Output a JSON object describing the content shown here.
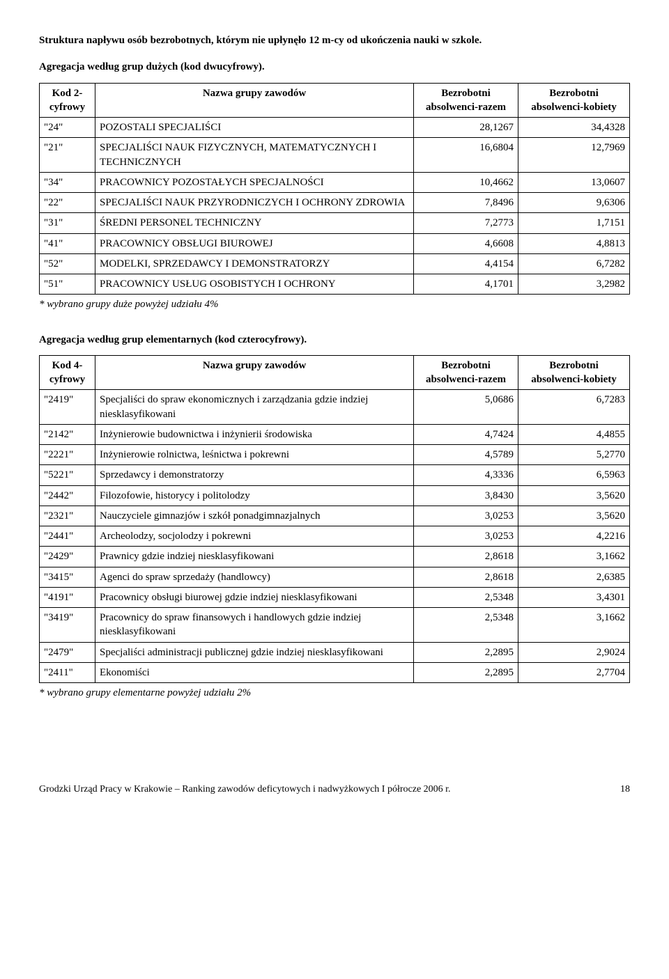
{
  "title": "Struktura napływu osób bezrobotnych, którym nie upłynęło 12 m-cy od ukończenia nauki w szkole.",
  "section1": {
    "heading": "Agregacja według grup dużych (kod dwucyfrowy).",
    "headers": {
      "code": "Kod 2-cyfrowy",
      "name": "Nazwa grupy zawodów",
      "razem": "Bezrobotni absolwenci-razem",
      "kobiety": "Bezrobotni absolwenci-kobiety"
    },
    "rows": [
      {
        "code": "\"24\"",
        "name": "POZOSTALI SPECJALIŚCI",
        "razem": "28,1267",
        "kobiety": "34,4328"
      },
      {
        "code": "\"21\"",
        "name": "SPECJALIŚCI NAUK FIZYCZNYCH, MATEMATYCZNYCH I TECHNICZNYCH",
        "razem": "16,6804",
        "kobiety": "12,7969"
      },
      {
        "code": "\"34\"",
        "name": "PRACOWNICY POZOSTAŁYCH SPECJALNOŚCI",
        "razem": "10,4662",
        "kobiety": "13,0607"
      },
      {
        "code": "\"22\"",
        "name": "SPECJALIŚCI NAUK PRZYRODNICZYCH I OCHRONY ZDROWIA",
        "razem": "7,8496",
        "kobiety": "9,6306"
      },
      {
        "code": "\"31\"",
        "name": "ŚREDNI PERSONEL TECHNICZNY",
        "razem": "7,2773",
        "kobiety": "1,7151"
      },
      {
        "code": "\"41\"",
        "name": "PRACOWNICY OBSŁUGI BIUROWEJ",
        "razem": "4,6608",
        "kobiety": "4,8813"
      },
      {
        "code": "\"52\"",
        "name": "MODELKI, SPRZEDAWCY I DEMONSTRATORZY",
        "razem": "4,4154",
        "kobiety": "6,7282"
      },
      {
        "code": "\"51\"",
        "name": "PRACOWNICY USŁUG OSOBISTYCH I OCHRONY",
        "razem": "4,1701",
        "kobiety": "3,2982"
      }
    ],
    "footnote": "* wybrano grupy duże powyżej udziału 4%",
    "col_widths": {
      "code": "80px",
      "name": "auto",
      "razem": "150px",
      "kobiety": "160px"
    }
  },
  "section2": {
    "heading": "Agregacja według grup elementarnych (kod czterocyfrowy).",
    "headers": {
      "code": "Kod 4-cyfrowy",
      "name": "Nazwa grupy zawodów",
      "razem": "Bezrobotni absolwenci-razem",
      "kobiety": "Bezrobotni absolwenci-kobiety"
    },
    "rows": [
      {
        "code": "\"2419\"",
        "name": "Specjaliści do spraw ekonomicznych i zarządzania gdzie indziej niesklasyfikowani",
        "razem": "5,0686",
        "kobiety": "6,7283"
      },
      {
        "code": "\"2142\"",
        "name": "Inżynierowie budownictwa i inżynierii środowiska",
        "razem": "4,7424",
        "kobiety": "4,4855"
      },
      {
        "code": "\"2221\"",
        "name": "Inżynierowie rolnictwa, leśnictwa i pokrewni",
        "razem": "4,5789",
        "kobiety": "5,2770"
      },
      {
        "code": "\"5221\"",
        "name": "Sprzedawcy i demonstratorzy",
        "razem": "4,3336",
        "kobiety": "6,5963"
      },
      {
        "code": "\"2442\"",
        "name": "Filozofowie, historycy i politolodzy",
        "razem": "3,8430",
        "kobiety": "3,5620"
      },
      {
        "code": "\"2321\"",
        "name": "Nauczyciele gimnazjów i szkół ponadgimnazjalnych",
        "razem": "3,0253",
        "kobiety": "3,5620"
      },
      {
        "code": "\"2441\"",
        "name": "Archeolodzy, socjolodzy i pokrewni",
        "razem": "3,0253",
        "kobiety": "4,2216"
      },
      {
        "code": "\"2429\"",
        "name": "Prawnicy gdzie indziej niesklasyfikowani",
        "razem": "2,8618",
        "kobiety": "3,1662"
      },
      {
        "code": "\"3415\"",
        "name": "Agenci do spraw sprzedaży (handlowcy)",
        "razem": "2,8618",
        "kobiety": "2,6385"
      },
      {
        "code": "\"4191\"",
        "name": "Pracownicy obsługi biurowej gdzie indziej niesklasyfikowani",
        "razem": "2,5348",
        "kobiety": "3,4301"
      },
      {
        "code": "\"3419\"",
        "name": "Pracownicy do spraw finansowych i handlowych gdzie indziej niesklasyfikowani",
        "razem": "2,5348",
        "kobiety": "3,1662"
      },
      {
        "code": "\"2479\"",
        "name": "Specjaliści administracji publicznej gdzie indziej niesklasyfikowani",
        "razem": "2,2895",
        "kobiety": "2,9024"
      },
      {
        "code": "\"2411\"",
        "name": "Ekonomiści",
        "razem": "2,2895",
        "kobiety": "2,7704"
      }
    ],
    "footnote": "* wybrano grupy elementarne powyżej udziału 2%",
    "col_widths": {
      "code": "80px",
      "name": "auto",
      "razem": "150px",
      "kobiety": "160px"
    }
  },
  "footer": {
    "text": "Grodzki Urząd Pracy w Krakowie – Ranking zawodów deficytowych i nadwyżkowych I półrocze 2006 r.",
    "page": "18"
  }
}
